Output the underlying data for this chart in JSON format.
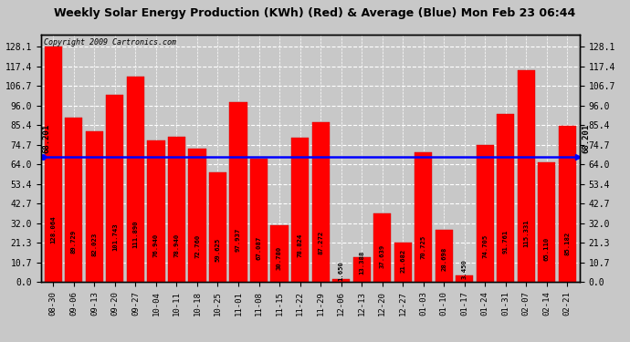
{
  "title": "Weekly Solar Energy Production (KWh) (Red) & Average (Blue) Mon Feb 23 06:44",
  "copyright": "Copyright 2009 Cartronics.com",
  "categories": [
    "08-30",
    "09-06",
    "09-13",
    "09-20",
    "09-27",
    "10-04",
    "10-11",
    "10-18",
    "10-25",
    "11-01",
    "11-08",
    "11-15",
    "11-22",
    "11-29",
    "12-06",
    "12-13",
    "12-20",
    "12-27",
    "01-03",
    "01-10",
    "01-17",
    "01-24",
    "01-31",
    "02-07",
    "02-14",
    "02-21"
  ],
  "values": [
    128.064,
    89.729,
    82.023,
    101.743,
    111.89,
    76.94,
    78.94,
    72.76,
    59.625,
    97.937,
    67.087,
    30.78,
    78.824,
    87.272,
    1.65,
    13.388,
    37.639,
    21.682,
    70.725,
    28.698,
    3.45,
    74.705,
    91.761,
    115.331,
    65.11,
    85.182
  ],
  "average": 68.201,
  "bar_color": "#ff0000",
  "average_color": "#0000ff",
  "background_color": "#c8c8c8",
  "plot_bg_color": "#c8c8c8",
  "grid_color": "#ffffff",
  "title_bg_color": "#ffffff",
  "title_text_color": "#000000",
  "yticks": [
    0.0,
    10.7,
    21.3,
    32.0,
    42.7,
    53.4,
    64.0,
    74.7,
    85.4,
    96.0,
    106.7,
    117.4,
    128.1
  ],
  "ylim": [
    0,
    135
  ],
  "avg_label": "68.201",
  "label_color": "#000000",
  "avg_label_color": "#000000"
}
